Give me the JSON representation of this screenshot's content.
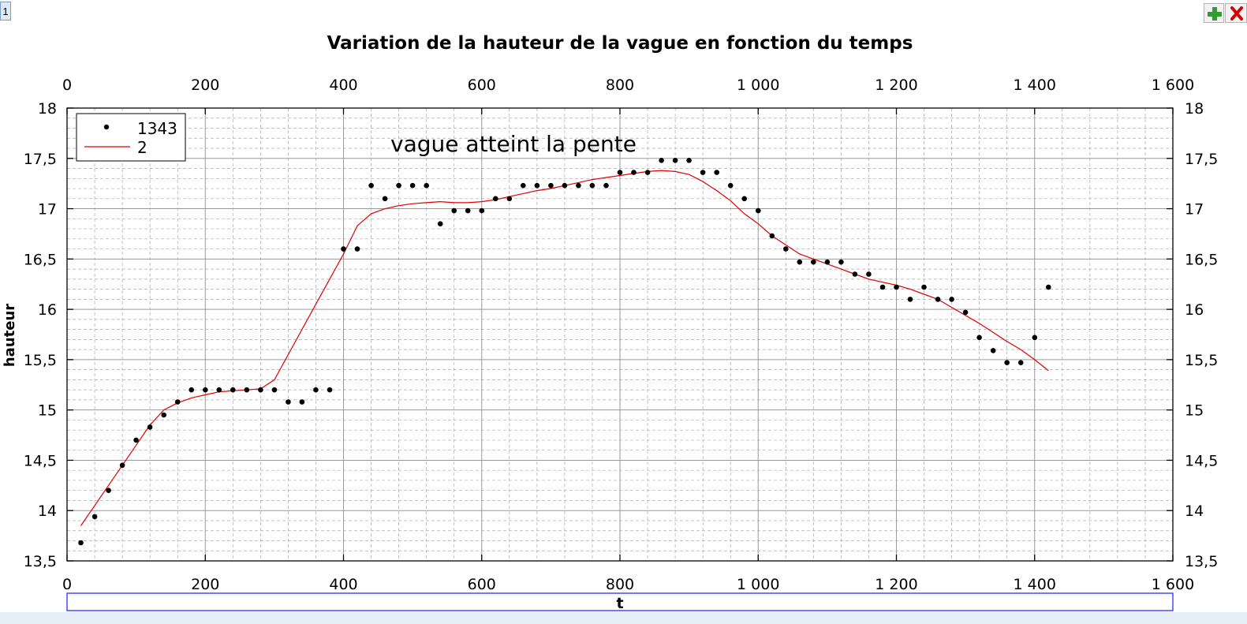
{
  "window": {
    "tab_label": "1",
    "add_icon": "plus-icon",
    "close_icon": "close-icon"
  },
  "colors": {
    "points": "#000000",
    "fit_line": "#e00000",
    "major_grid": "#9a9a9a",
    "minor_grid": "#aaaaaa",
    "xlabel_box": "#1a1aff"
  },
  "chart_data": {
    "type": "scatter",
    "title": "Variation de la hauteur de la vague en fonction du temps",
    "annotation": "vague atteint la pente",
    "xlabel": "t",
    "ylabel": "hauteur",
    "xlim": [
      0,
      1600
    ],
    "ylim": [
      13.5,
      18
    ],
    "x_ticks": [
      "0",
      "200",
      "400",
      "600",
      "800",
      "1 000",
      "1 200",
      "1 400",
      "1 600"
    ],
    "y_ticks": [
      "13,5",
      "14",
      "14,5",
      "15",
      "15,5",
      "16",
      "16,5",
      "17",
      "17,5",
      "18"
    ],
    "grid": true,
    "legend_position": "top-left",
    "series": [
      {
        "name": "1343",
        "kind": "scatter",
        "x": [
          20,
          40,
          60,
          80,
          100,
          120,
          140,
          160,
          180,
          200,
          220,
          240,
          260,
          280,
          300,
          320,
          340,
          360,
          380,
          400,
          420,
          440,
          460,
          480,
          500,
          520,
          540,
          560,
          580,
          600,
          620,
          640,
          660,
          680,
          700,
          720,
          740,
          760,
          780,
          800,
          820,
          840,
          860,
          880,
          900,
          920,
          940,
          960,
          980,
          1000,
          1020,
          1040,
          1060,
          1080,
          1100,
          1120,
          1140,
          1160,
          1180,
          1200,
          1220,
          1240,
          1260,
          1280,
          1300,
          1320,
          1340,
          1360,
          1380,
          1400,
          1420
        ],
        "y": [
          13.68,
          13.94,
          14.2,
          14.45,
          14.7,
          14.83,
          14.95,
          15.08,
          15.2,
          15.2,
          15.2,
          15.2,
          15.2,
          15.2,
          15.2,
          15.08,
          15.08,
          15.2,
          15.2,
          16.6,
          16.6,
          17.23,
          17.1,
          17.23,
          17.23,
          17.23,
          16.85,
          16.98,
          16.98,
          16.98,
          17.1,
          17.1,
          17.23,
          17.23,
          17.23,
          17.23,
          17.23,
          17.23,
          17.23,
          17.36,
          17.36,
          17.36,
          17.48,
          17.48,
          17.48,
          17.36,
          17.36,
          17.23,
          17.1,
          16.98,
          16.73,
          16.6,
          16.47,
          16.47,
          16.47,
          16.47,
          16.35,
          16.35,
          16.22,
          16.22,
          16.1,
          16.22,
          16.1,
          16.1,
          15.97,
          15.72,
          15.59,
          15.47,
          15.47,
          15.72,
          16.22
        ]
      },
      {
        "name": "2",
        "kind": "line",
        "x": [
          20,
          40,
          60,
          80,
          100,
          120,
          140,
          160,
          180,
          200,
          220,
          240,
          260,
          280,
          300,
          320,
          340,
          360,
          380,
          400,
          420,
          440,
          460,
          480,
          500,
          520,
          540,
          560,
          580,
          600,
          620,
          640,
          660,
          680,
          700,
          720,
          740,
          760,
          780,
          800,
          820,
          840,
          860,
          880,
          900,
          920,
          940,
          960,
          980,
          1000,
          1020,
          1040,
          1060,
          1080,
          1100,
          1120,
          1140,
          1160,
          1180,
          1200,
          1220,
          1240,
          1260,
          1280,
          1300,
          1320,
          1340,
          1360,
          1380,
          1400,
          1420
        ],
        "y": [
          13.85,
          14.05,
          14.25,
          14.45,
          14.65,
          14.85,
          15.0,
          15.07,
          15.12,
          15.15,
          15.18,
          15.19,
          15.2,
          15.21,
          15.3,
          15.55,
          15.8,
          16.05,
          16.3,
          16.55,
          16.83,
          16.95,
          17.0,
          17.03,
          17.05,
          17.06,
          17.07,
          17.06,
          17.06,
          17.07,
          17.09,
          17.12,
          17.15,
          17.18,
          17.2,
          17.23,
          17.26,
          17.29,
          17.31,
          17.33,
          17.35,
          17.37,
          17.38,
          17.37,
          17.34,
          17.27,
          17.18,
          17.08,
          16.95,
          16.85,
          16.73,
          16.64,
          16.55,
          16.5,
          16.45,
          16.4,
          16.35,
          16.3,
          16.27,
          16.24,
          16.2,
          16.15,
          16.1,
          16.02,
          15.94,
          15.86,
          15.77,
          15.68,
          15.6,
          15.5,
          15.39
        ]
      }
    ]
  }
}
